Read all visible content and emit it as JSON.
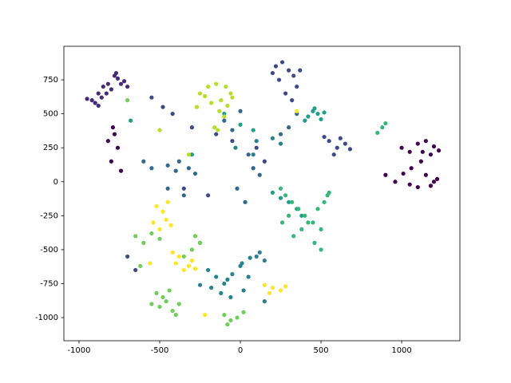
{
  "chart_data": {
    "type": "scatter",
    "xlim": [
      -1094,
      1361
    ],
    "ylim": [
      -1170,
      997
    ],
    "xticks": [
      -1000,
      -500,
      0,
      500,
      1000
    ],
    "yticks": [
      -1000,
      -750,
      -500,
      -250,
      0,
      250,
      500,
      750
    ],
    "grid": false,
    "series": [
      {
        "color": "#440154",
        "x": [
          1000,
          1050,
          1100,
          1150,
          1200,
          1230,
          1180,
          1120,
          1060,
          1010,
          1150,
          1200,
          1100,
          1050,
          960,
          1180,
          1220,
          1130,
          -780,
          -820,
          -760,
          -800,
          -740,
          -790,
          900
        ],
        "y": [
          250,
          220,
          280,
          300,
          260,
          230,
          200,
          150,
          100,
          60,
          50,
          0,
          -40,
          -20,
          0,
          -30,
          20,
          220,
          350,
          300,
          250,
          150,
          80,
          400,
          50
        ]
      },
      {
        "color": "#482878",
        "x": [
          -920,
          -880,
          -850,
          -820,
          -780,
          -760,
          -720,
          -900,
          -860,
          -800,
          -740,
          -950,
          -830,
          -770,
          -700,
          -880
        ],
        "y": [
          600,
          650,
          700,
          720,
          780,
          760,
          740,
          580,
          620,
          680,
          720,
          610,
          650,
          800,
          700,
          560
        ]
      },
      {
        "color": "#3e4989",
        "x": [
          220,
          260,
          300,
          330,
          350,
          240,
          280,
          320,
          200,
          370,
          550,
          600,
          620,
          650,
          580,
          680,
          520,
          -550,
          -480,
          -420,
          -300,
          -150,
          -50,
          100,
          150,
          -200,
          -350,
          -700,
          -650
        ],
        "y": [
          850,
          880,
          820,
          780,
          700,
          750,
          650,
          600,
          800,
          820,
          300,
          250,
          320,
          280,
          200,
          240,
          330,
          620,
          550,
          500,
          400,
          350,
          300,
          250,
          150,
          -100,
          -50,
          -550,
          -650
        ]
      },
      {
        "color": "#31688e",
        "x": [
          -450,
          -400,
          -380,
          -320,
          -280,
          -100,
          -50,
          0,
          50,
          80,
          120,
          -450,
          -350,
          -250,
          -20,
          30,
          250,
          300,
          350,
          -600,
          -550
        ],
        "y": [
          120,
          80,
          150,
          100,
          60,
          450,
          380,
          520,
          200,
          100,
          50,
          -50,
          -100,
          -450,
          -50,
          -150,
          350,
          400,
          500,
          150,
          100
        ]
      },
      {
        "color": "#26828e",
        "x": [
          -200,
          -150,
          -100,
          -50,
          0,
          50,
          -180,
          -120,
          -60,
          20,
          100,
          120,
          150,
          -250,
          -80,
          10,
          60,
          150,
          100,
          200,
          250,
          -30,
          80
        ],
        "y": [
          -650,
          -700,
          -750,
          -680,
          -620,
          -700,
          -780,
          -820,
          -850,
          -800,
          -550,
          -520,
          -580,
          -760,
          -720,
          -600,
          -560,
          -880,
          300,
          320,
          280,
          250,
          200
        ]
      },
      {
        "color": "#1f9e89",
        "x": [
          420,
          450,
          480,
          500,
          520,
          400,
          460,
          -680,
          -100,
          0,
          80,
          -300,
          200,
          300,
          350,
          380,
          250
        ],
        "y": [
          480,
          520,
          500,
          460,
          510,
          450,
          540,
          450,
          500,
          420,
          380,
          200,
          -80,
          -150,
          -200,
          -250,
          -120
        ]
      },
      {
        "color": "#35b779",
        "x": [
          250,
          280,
          320,
          360,
          400,
          450,
          500,
          520,
          540,
          480,
          420,
          380,
          300,
          260,
          330,
          460,
          500,
          550,
          850,
          880,
          900
        ],
        "y": [
          -50,
          -100,
          -150,
          -200,
          -250,
          -300,
          -350,
          -150,
          -100,
          -200,
          -300,
          -350,
          -250,
          -300,
          -400,
          -450,
          -500,
          -80,
          360,
          400,
          430
        ]
      },
      {
        "color": "#6ece58",
        "x": [
          -550,
          -500,
          -460,
          -420,
          -380,
          -520,
          -440,
          -400,
          -480,
          -100,
          -60,
          -20,
          20,
          -80,
          -650,
          -600,
          -550,
          -500,
          -350,
          -300,
          -250,
          -620,
          -700,
          -280
        ],
        "y": [
          -900,
          -920,
          -880,
          -950,
          -900,
          -820,
          -800,
          -980,
          -850,
          -980,
          -1020,
          -1000,
          -960,
          -1050,
          -400,
          -450,
          -380,
          -420,
          -550,
          -500,
          -450,
          -620,
          600,
          -400
        ]
      },
      {
        "color": "#b5de2b",
        "x": [
          -250,
          -200,
          -150,
          -120,
          -80,
          -50,
          -180,
          -130,
          -100,
          -220,
          -160,
          -60,
          -270,
          -90,
          -140,
          -320,
          -500
        ],
        "y": [
          650,
          700,
          720,
          600,
          560,
          620,
          580,
          520,
          480,
          630,
          400,
          650,
          550,
          700,
          380,
          200,
          380
        ]
      },
      {
        "color": "#fde725",
        "x": [
          -520,
          -480,
          -460,
          -430,
          -540,
          -500,
          -450,
          -400,
          -380,
          -350,
          -320,
          -300,
          -280,
          -420,
          -560,
          150,
          200,
          250,
          280,
          180,
          -220,
          350
        ],
        "y": [
          -180,
          -220,
          -280,
          -320,
          -300,
          -350,
          -150,
          -600,
          -550,
          -650,
          -620,
          -580,
          -640,
          -520,
          -600,
          -760,
          -780,
          -800,
          -770,
          -820,
          -980,
          520
        ]
      }
    ]
  }
}
